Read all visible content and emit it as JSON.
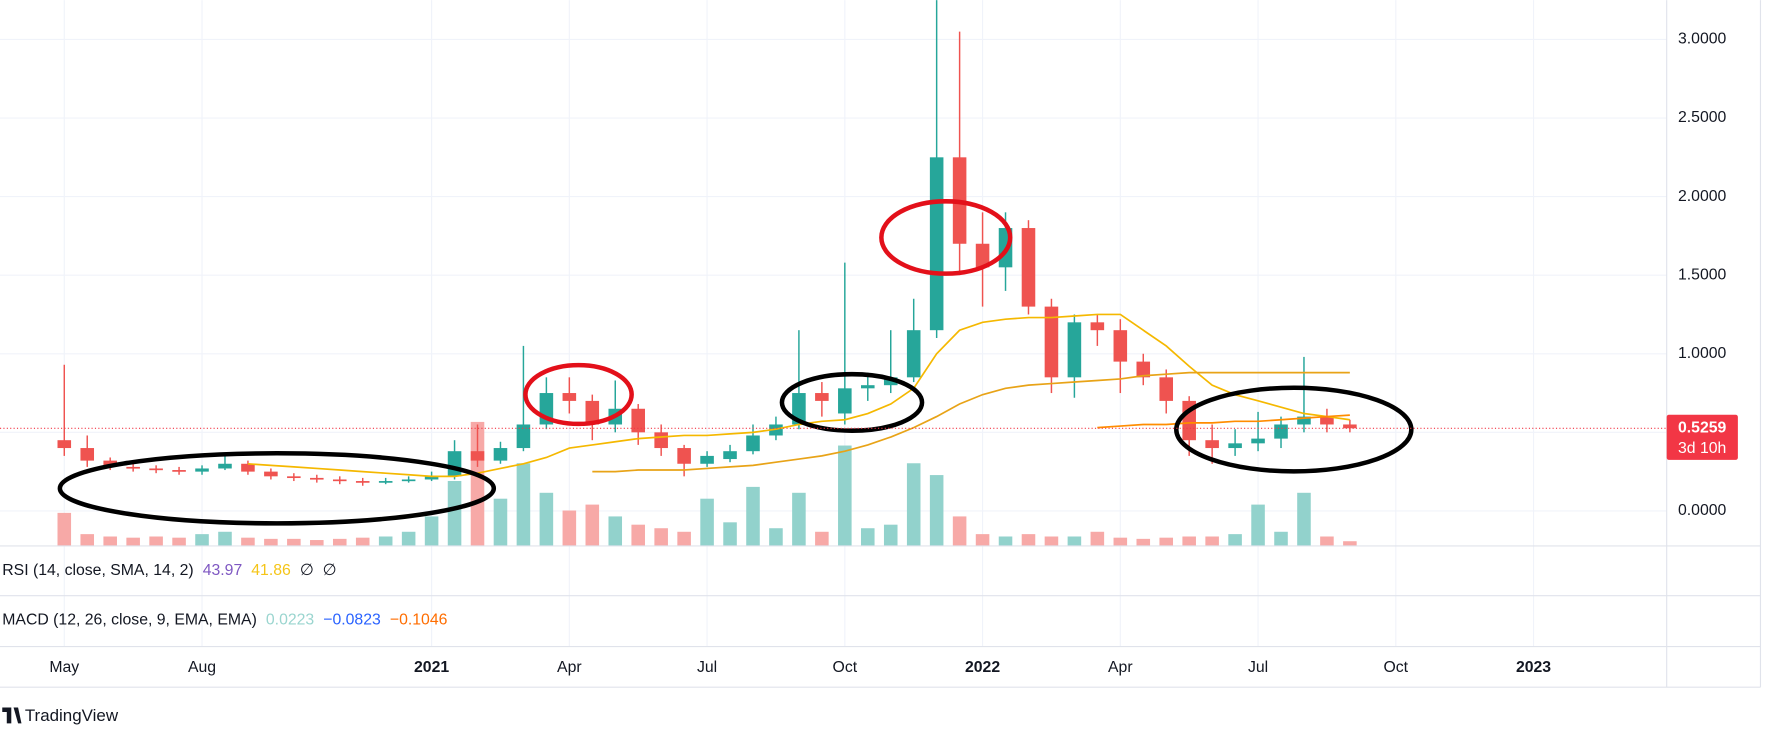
{
  "chart_data": {
    "type": "candlestick",
    "open": [
      0.45,
      0.4,
      0.32,
      0.28,
      0.27,
      0.26,
      0.25,
      0.27,
      0.3,
      0.25,
      0.22,
      0.21,
      0.2,
      0.19,
      0.18,
      0.19,
      0.2,
      0.22,
      0.38,
      0.32,
      0.4,
      0.55,
      0.75,
      0.7,
      0.55,
      0.65,
      0.5,
      0.4,
      0.3,
      0.33,
      0.38,
      0.48,
      0.55,
      0.75,
      0.62,
      0.78,
      0.8,
      0.85,
      1.15,
      2.25,
      1.7,
      1.55,
      1.8,
      1.3,
      0.85,
      1.2,
      1.15,
      0.95,
      0.85,
      0.7,
      0.45,
      0.4,
      0.43,
      0.46,
      0.55,
      0.6,
      0.55
    ],
    "high": [
      0.93,
      0.48,
      0.34,
      0.3,
      0.29,
      0.28,
      0.29,
      0.35,
      0.32,
      0.27,
      0.24,
      0.23,
      0.22,
      0.21,
      0.21,
      0.22,
      0.25,
      0.45,
      0.55,
      0.44,
      1.05,
      0.85,
      0.85,
      0.74,
      0.83,
      0.68,
      0.55,
      0.42,
      0.38,
      0.42,
      0.55,
      0.6,
      1.15,
      0.82,
      1.58,
      0.88,
      1.15,
      1.35,
      3.25,
      3.05,
      1.9,
      1.9,
      1.85,
      1.35,
      1.25,
      1.25,
      1.22,
      1.0,
      0.9,
      0.73,
      0.55,
      0.52,
      0.63,
      0.6,
      0.98,
      0.65,
      0.58
    ],
    "low": [
      0.35,
      0.28,
      0.26,
      0.25,
      0.24,
      0.23,
      0.23,
      0.26,
      0.23,
      0.2,
      0.19,
      0.18,
      0.17,
      0.16,
      0.17,
      0.18,
      0.19,
      0.2,
      0.28,
      0.3,
      0.38,
      0.52,
      0.62,
      0.45,
      0.5,
      0.42,
      0.35,
      0.22,
      0.28,
      0.31,
      0.36,
      0.45,
      0.52,
      0.6,
      0.55,
      0.7,
      0.75,
      0.82,
      1.1,
      1.5,
      1.3,
      1.4,
      1.25,
      0.75,
      0.72,
      1.05,
      0.75,
      0.8,
      0.62,
      0.35,
      0.3,
      0.35,
      0.38,
      0.4,
      0.5,
      0.5,
      0.5
    ],
    "close": [
      0.4,
      0.32,
      0.28,
      0.27,
      0.26,
      0.25,
      0.27,
      0.3,
      0.25,
      0.22,
      0.21,
      0.2,
      0.19,
      0.18,
      0.19,
      0.2,
      0.22,
      0.38,
      0.32,
      0.4,
      0.55,
      0.75,
      0.7,
      0.55,
      0.65,
      0.5,
      0.4,
      0.3,
      0.35,
      0.38,
      0.48,
      0.55,
      0.75,
      0.7,
      0.78,
      0.8,
      0.85,
      1.15,
      2.25,
      1.7,
      1.55,
      1.8,
      1.3,
      0.85,
      1.2,
      1.15,
      0.95,
      0.85,
      0.7,
      0.45,
      0.4,
      0.43,
      0.46,
      0.55,
      0.6,
      0.55,
      0.5259
    ],
    "volume": [
      28,
      10,
      8,
      7,
      8,
      7,
      10,
      12,
      7,
      6,
      6,
      5,
      6,
      7,
      8,
      12,
      25,
      55,
      105,
      40,
      70,
      45,
      30,
      35,
      25,
      18,
      15,
      12,
      40,
      20,
      50,
      15,
      45,
      12,
      85,
      15,
      18,
      70,
      60,
      25,
      10,
      8,
      10,
      8,
      8,
      12,
      7,
      6,
      7,
      8,
      8,
      10,
      35,
      12,
      45,
      8,
      4
    ],
    "volume_lim": [
      0,
      110
    ],
    "up_color": "#26a69a",
    "down_color": "#ef5350",
    "up_volume_color": "#92d2cc",
    "down_volume_color": "#f7a9a7",
    "lines": [
      {
        "color": "#f5b800",
        "values": [
          null,
          null,
          null,
          null,
          null,
          null,
          null,
          null,
          0.3,
          0.29,
          0.28,
          0.27,
          0.26,
          0.25,
          0.24,
          0.23,
          0.22,
          0.22,
          0.24,
          0.27,
          0.3,
          0.34,
          0.4,
          0.42,
          0.44,
          0.46,
          0.47,
          0.48,
          0.48,
          0.49,
          0.5,
          0.52,
          0.55,
          0.57,
          0.58,
          0.62,
          0.68,
          0.78,
          1.0,
          1.15,
          1.2,
          1.22,
          1.23,
          1.23,
          1.24,
          1.25,
          1.25,
          1.15,
          1.05,
          0.92,
          0.8,
          0.74,
          0.7,
          0.66,
          0.62,
          0.6,
          0.58
        ]
      },
      {
        "color": "#e8a317",
        "values": [
          null,
          null,
          null,
          null,
          null,
          null,
          null,
          null,
          null,
          null,
          null,
          null,
          null,
          null,
          null,
          null,
          null,
          null,
          null,
          null,
          null,
          null,
          null,
          0.25,
          0.25,
          0.26,
          0.26,
          0.26,
          0.27,
          0.28,
          0.29,
          0.31,
          0.33,
          0.35,
          0.38,
          0.42,
          0.47,
          0.53,
          0.6,
          0.68,
          0.74,
          0.78,
          0.8,
          0.81,
          0.82,
          0.83,
          0.84,
          0.86,
          0.87,
          0.88,
          0.88,
          0.88,
          0.88,
          0.88,
          0.88,
          0.88,
          0.88
        ]
      },
      {
        "color": "#ff8c00",
        "values": [
          null,
          null,
          null,
          null,
          null,
          null,
          null,
          null,
          null,
          null,
          null,
          null,
          null,
          null,
          null,
          null,
          null,
          null,
          null,
          null,
          null,
          null,
          null,
          null,
          null,
          null,
          null,
          null,
          null,
          null,
          null,
          null,
          null,
          null,
          null,
          null,
          null,
          null,
          null,
          null,
          null,
          null,
          null,
          null,
          null,
          0.53,
          0.54,
          0.55,
          0.55,
          0.56,
          0.56,
          0.57,
          0.57,
          0.58,
          0.59,
          0.6,
          0.61
        ]
      }
    ],
    "ylim": [
      -0.223,
      3.25
    ],
    "yticks": [
      {
        "value": 0,
        "label": "0.0000"
      },
      {
        "value": 0.5,
        "label": "0.5000"
      },
      {
        "value": 1,
        "label": "1.0000"
      },
      {
        "value": 1.5,
        "label": "1.5000"
      },
      {
        "value": 2,
        "label": "2.0000"
      },
      {
        "value": 2.5,
        "label": "2.5000"
      },
      {
        "value": 3,
        "label": "3.0000"
      }
    ],
    "xlim": [
      -2.8,
      69.8
    ],
    "xticks": [
      {
        "value": 0,
        "label": "May"
      },
      {
        "value": 6,
        "label": "Aug"
      },
      {
        "value": 16,
        "label": "2021"
      },
      {
        "value": 22,
        "label": "Apr"
      },
      {
        "value": 28,
        "label": "Jul"
      },
      {
        "value": 34,
        "label": "Oct"
      },
      {
        "value": 40,
        "label": "2022"
      },
      {
        "value": 46,
        "label": "Apr"
      },
      {
        "value": 52,
        "label": "Jul"
      },
      {
        "value": 58,
        "label": "Oct"
      },
      {
        "value": 64,
        "label": "2023"
      }
    ],
    "last_price": 0.5259,
    "countdown": "3d 10h",
    "last_price_color": "#f23645",
    "indicators": [
      {
        "name": "RSI (14, close, SMA, 14, 2)",
        "values": [
          {
            "label": "43.97",
            "color": "#7e57c2"
          },
          {
            "label": "41.86",
            "color": "#f5c518"
          },
          {
            "label": "∅",
            "color": "#131722"
          },
          {
            "label": "∅",
            "color": "#131722"
          }
        ]
      },
      {
        "name": "MACD (12, 26, close, 9, EMA, EMA)",
        "values": [
          {
            "label": "0.0223",
            "color": "#9ad5cf"
          },
          {
            "label": "−0.0823",
            "color": "#2962ff"
          },
          {
            "label": "−0.1046",
            "color": "#ff6d00"
          }
        ]
      }
    ],
    "brand": "TradingView"
  }
}
